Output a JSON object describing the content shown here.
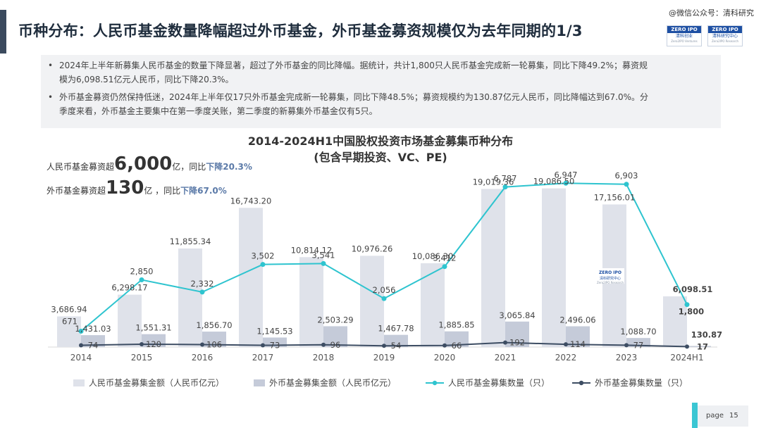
{
  "header": {
    "title": "币种分布：人民币基金数量降幅超过外币基金，外币基金募资规模仅为去年同期的1/3",
    "watermark": "@微信公众号：清科研究",
    "logo_left": {
      "top": "ZERO IPO",
      "sub": "清科创业",
      "sub2": "Zero2IPO Ventures"
    },
    "logo_right": {
      "top": "ZERO IPO",
      "sub": "清科研究中心",
      "sub2": "Zero2IPO Research"
    }
  },
  "bullets": [
    {
      "dot": "•",
      "line1": "2024年上半年新募集人民币基金的数量下降显著，超过了外币基金的同比降幅。据统计，共计1,800只人民币基金完成新一轮募集，同比下降49.2%；募资规",
      "line2": "模为6,098.51亿元人民币，同比下降20.3%。"
    },
    {
      "dot": "•",
      "line1": "外币基金募资仍然保持低迷，2024年上半年仅17只外币基金完成新一轮募集，同比下降48.5%；募资规模约为130.87亿元人民币，同比降幅达到67.0%。分",
      "line2": "季度来看，外币基金主要集中在第一季度关账，第二季度的新募集外币基金仅有5只。"
    }
  ],
  "callouts": [
    {
      "pre": "人民币基金募资超",
      "big": "6,000",
      "unit": "亿，同比",
      "hl": "下降20.3%"
    },
    {
      "pre": "外币基金募资超",
      "big": "130",
      "unit": "亿 ，同比",
      "hl": "下降67.0%"
    }
  ],
  "chart_watermark": {
    "top": "ZERO IPO",
    "sub": "清科研究中心",
    "sub2": "Zero2IPO Research"
  },
  "chart_data": {
    "type": "bar",
    "title": "2014-2024H1中国股权投资市场基金募集币种分布",
    "subtitle": "(包含早期投资、VC、PE)",
    "categories": [
      "2014",
      "2015",
      "2016",
      "2017",
      "2018",
      "2019",
      "2020",
      "2021",
      "2022",
      "2023",
      "2024H1"
    ],
    "series": [
      {
        "name": "人民币基金募集金额（人民币亿元）",
        "type": "bar",
        "color": "#dfe2ea",
        "values": [
          3686.94,
          6298.17,
          11855.34,
          16743.2,
          10814.12,
          10976.26,
          10086.3,
          19019.36,
          19086.5,
          17156.01,
          6098.51
        ],
        "labels": [
          "3,686.94",
          "6,298.17",
          "11,855.34",
          "16,743.20",
          "10,814.12",
          "10,976.26",
          "10,086.30",
          "19,019.36",
          "19,086.50",
          "17,156.01",
          "6,098.51"
        ]
      },
      {
        "name": "外币基金募集金额（人民币亿元）",
        "type": "bar",
        "color": "#c5cbd9",
        "values": [
          1431.03,
          1551.31,
          1856.7,
          1145.53,
          2503.29,
          1467.78,
          1885.85,
          3065.84,
          2496.06,
          1088.7,
          130.87
        ],
        "labels": [
          "1,431.03",
          "1,551.31",
          "1,856.70",
          "1,145.53",
          "2,503.29",
          "1,467.78",
          "1,885.85",
          "3,065.84",
          "2,496.06",
          "1,088.70",
          "130.87"
        ]
      },
      {
        "name": "人民币基金募集数量（只）",
        "type": "line",
        "color": "#2ec4cf",
        "values": [
          671,
          2850,
          2332,
          3502,
          3541,
          2056,
          3412,
          6787,
          6947,
          6903,
          1800
        ],
        "labels": [
          "671",
          "2,850",
          "2,332",
          "3,502",
          "3,541",
          "2,056",
          "3,412",
          "6,787",
          "6,947",
          "6,903",
          "1,800"
        ]
      },
      {
        "name": "外币基金募集数量（只）",
        "type": "line",
        "color": "#3d4d63",
        "values": [
          74,
          120,
          106,
          73,
          96,
          54,
          66,
          192,
          114,
          77,
          17
        ],
        "labels": [
          "74",
          "120",
          "106",
          "73",
          "96",
          "54",
          "66",
          "192",
          "114",
          "77",
          "17"
        ]
      }
    ],
    "ylim_amount": [
      0,
      21000
    ],
    "ylim_count": [
      0,
      8000
    ],
    "grid": false,
    "legend_position": "bottom"
  },
  "footer": {
    "page_label": "page",
    "page_number": "15"
  }
}
